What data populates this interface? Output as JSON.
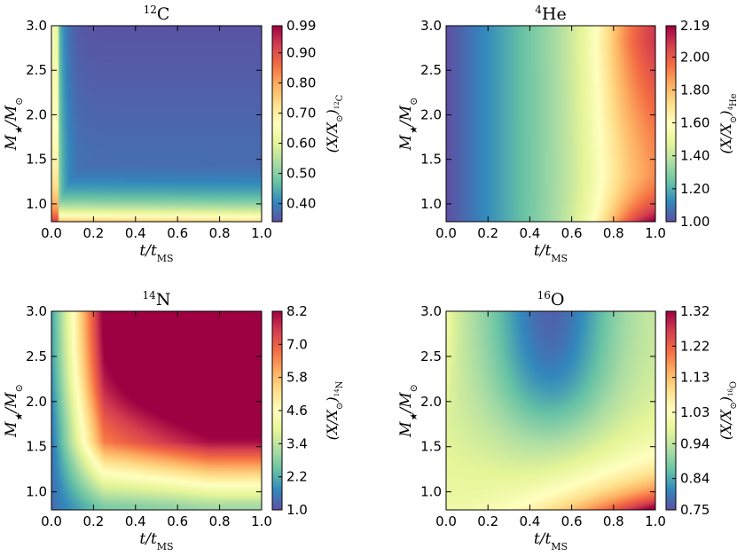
{
  "chart_data": [
    {
      "type": "heatmap",
      "element": "12C",
      "title": "12C",
      "title_sup": "12",
      "title_base": "C",
      "xlabel": "t/t_MS",
      "ylabel": "M_star/M_sun",
      "xlim": [
        0.0,
        1.0
      ],
      "ylim": [
        0.8,
        3.0
      ],
      "xticks": [
        "0.0",
        "0.2",
        "0.4",
        "0.6",
        "0.8",
        "1.0"
      ],
      "yticks": [
        "1.0",
        "1.5",
        "2.0",
        "2.5",
        "3.0"
      ],
      "colorbar_label": "(X/X_sun)_12C",
      "colorbar_range": [
        0.34,
        0.99
      ],
      "colorbar_ticks": [
        "0.40",
        "0.50",
        "0.60",
        "0.70",
        "0.80",
        "0.90",
        "0.99"
      ],
      "colormap": "Spectral_r",
      "field_description_points": [
        {
          "t": 0.0,
          "m": 0.8,
          "value": 0.99
        },
        {
          "t": 0.0,
          "m": 1.5,
          "value": 0.85
        },
        {
          "t": 0.0,
          "m": 3.0,
          "value": 0.62
        },
        {
          "t": 0.1,
          "m": 1.0,
          "value": 0.65
        },
        {
          "t": 0.5,
          "m": 1.0,
          "value": 0.62
        },
        {
          "t": 0.5,
          "m": 1.3,
          "value": 0.48
        },
        {
          "t": 0.5,
          "m": 2.5,
          "value": 0.36
        },
        {
          "t": 1.0,
          "m": 1.0,
          "value": 0.62
        },
        {
          "t": 1.0,
          "m": 3.0,
          "value": 0.4
        }
      ]
    },
    {
      "type": "heatmap",
      "element": "4He",
      "title": "4He",
      "title_sup": "4",
      "title_base": "He",
      "xlabel": "t/t_MS",
      "ylabel": "M_star/M_sun",
      "xlim": [
        0.0,
        1.0
      ],
      "ylim": [
        0.8,
        3.0
      ],
      "xticks": [
        "0.0",
        "0.2",
        "0.4",
        "0.6",
        "0.8",
        "1.0"
      ],
      "yticks": [
        "1.0",
        "1.5",
        "2.0",
        "2.5",
        "3.0"
      ],
      "colorbar_label": "(X/X_sun)_4He",
      "colorbar_range": [
        1.0,
        2.19
      ],
      "colorbar_ticks": [
        "1.00",
        "1.20",
        "1.40",
        "1.60",
        "1.80",
        "2.00",
        "2.19"
      ],
      "colormap": "Spectral_r",
      "field_description_points": [
        {
          "t": 0.0,
          "m": 2.0,
          "value": 1.0
        },
        {
          "t": 0.5,
          "m": 2.0,
          "value": 1.55
        },
        {
          "t": 0.8,
          "m": 1.2,
          "value": 1.55
        },
        {
          "t": 0.9,
          "m": 2.8,
          "value": 2.05
        },
        {
          "t": 1.0,
          "m": 3.0,
          "value": 2.19
        },
        {
          "t": 1.0,
          "m": 0.8,
          "value": 2.0
        }
      ]
    },
    {
      "type": "heatmap",
      "element": "14N",
      "title": "14N",
      "title_sup": "14",
      "title_base": "N",
      "xlabel": "t/t_MS",
      "ylabel": "M_star/M_sun",
      "xlim": [
        0.0,
        1.0
      ],
      "ylim": [
        0.8,
        3.0
      ],
      "xticks": [
        "0.0",
        "0.2",
        "0.4",
        "0.6",
        "0.8",
        "1.0"
      ],
      "yticks": [
        "1.0",
        "1.5",
        "2.0",
        "2.5",
        "3.0"
      ],
      "colorbar_label": "(X/X_sun)_14N",
      "colorbar_range": [
        1.0,
        8.2
      ],
      "colorbar_ticks": [
        "1.0",
        "2.2",
        "3.4",
        "4.6",
        "5.8",
        "7.0",
        "8.2"
      ],
      "colormap": "Spectral_r",
      "field_description_points": [
        {
          "t": 0.0,
          "m": 0.8,
          "value": 1.0
        },
        {
          "t": 0.2,
          "m": 1.2,
          "value": 2.5
        },
        {
          "t": 0.2,
          "m": 2.5,
          "value": 4.5
        },
        {
          "t": 0.6,
          "m": 2.0,
          "value": 5.8
        },
        {
          "t": 1.0,
          "m": 3.0,
          "value": 8.2
        },
        {
          "t": 1.0,
          "m": 0.8,
          "value": 3.0
        }
      ]
    },
    {
      "type": "heatmap",
      "element": "16O",
      "title": "16O",
      "title_sup": "16",
      "title_base": "O",
      "xlabel": "t/t_MS",
      "ylabel": "M_star/M_sun",
      "xlim": [
        0.0,
        1.0
      ],
      "ylim": [
        0.8,
        3.0
      ],
      "xticks": [
        "0.0",
        "0.2",
        "0.4",
        "0.6",
        "0.8",
        "1.0"
      ],
      "yticks": [
        "1.0",
        "1.5",
        "2.0",
        "2.5",
        "3.0"
      ],
      "colorbar_label": "(X/X_sun)_16O",
      "colorbar_range": [
        0.75,
        1.32
      ],
      "colorbar_ticks": [
        "0.75",
        "0.84",
        "0.94",
        "1.03",
        "1.13",
        "1.22",
        "1.32"
      ],
      "colormap": "Spectral_r",
      "field_description_points": [
        {
          "t": 0.0,
          "m": 3.0,
          "value": 0.97
        },
        {
          "t": 0.5,
          "m": 2.8,
          "value": 0.77
        },
        {
          "t": 0.5,
          "m": 2.0,
          "value": 0.92
        },
        {
          "t": 0.3,
          "m": 1.4,
          "value": 0.97
        },
        {
          "t": 0.8,
          "m": 1.2,
          "value": 1.1
        },
        {
          "t": 1.0,
          "m": 0.8,
          "value": 1.32
        }
      ]
    }
  ]
}
